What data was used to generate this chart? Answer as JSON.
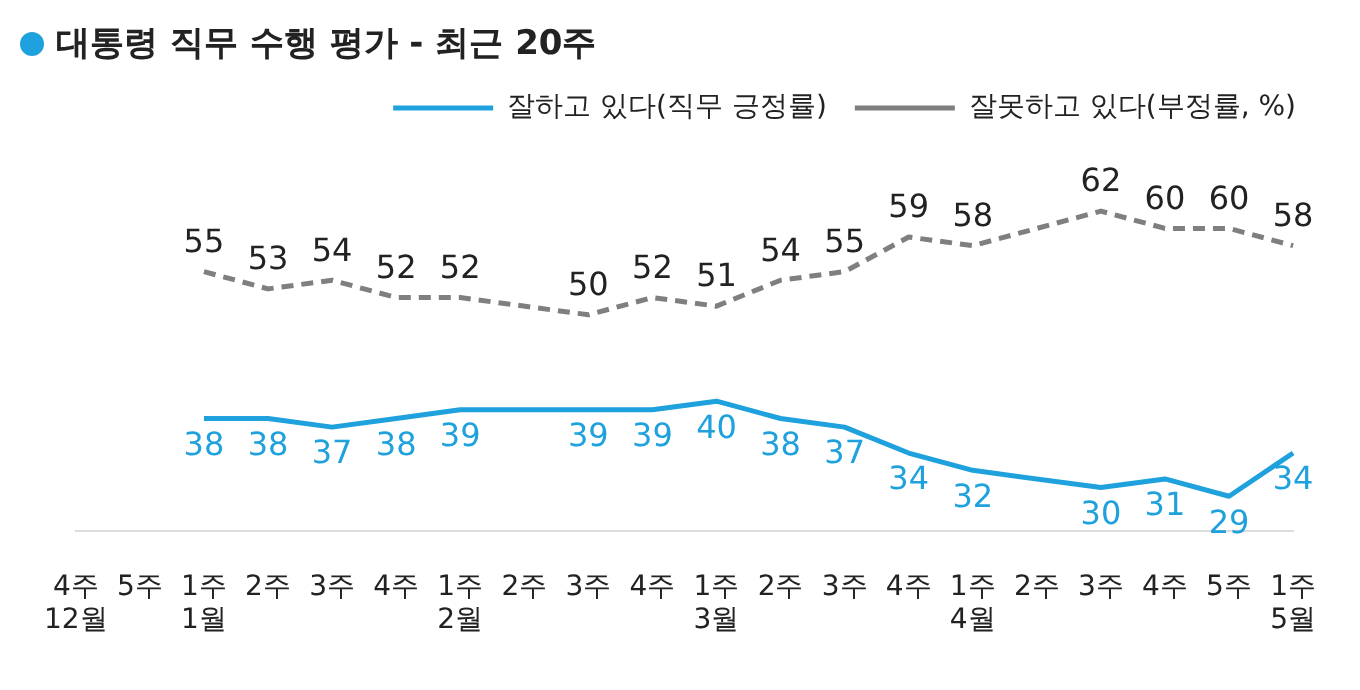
{
  "chart_data": {
    "type": "line",
    "title": "대통령 직무 수행 평가 - 최근 20주",
    "categories": [
      "4주\n12월",
      "5주",
      "1주\n1월",
      "2주",
      "3주",
      "4주",
      "1주\n2월",
      "2주",
      "3주",
      "4주",
      "1주\n3월",
      "2주",
      "3주",
      "4주",
      "1주\n4월",
      "2주",
      "3주",
      "4주",
      "5주",
      "1주\n5월"
    ],
    "series": [
      {
        "name": "잘하고 있다(직무 긍정률)",
        "color": "#1ea1dc",
        "line_style": "solid",
        "values": [
          null,
          null,
          38,
          38,
          37,
          38,
          39,
          null,
          39,
          39,
          40,
          38,
          37,
          34,
          32,
          null,
          30,
          31,
          29,
          34
        ]
      },
      {
        "name": "잘못하고 있다(부정률, %)",
        "color": "#7f7f7f",
        "line_style": "dashed",
        "values": [
          null,
          null,
          55,
          53,
          54,
          52,
          52,
          null,
          50,
          52,
          51,
          54,
          55,
          59,
          58,
          null,
          62,
          60,
          60,
          58
        ]
      }
    ],
    "data_labels": true,
    "legend": "top right",
    "grid": false,
    "marker": "none"
  }
}
